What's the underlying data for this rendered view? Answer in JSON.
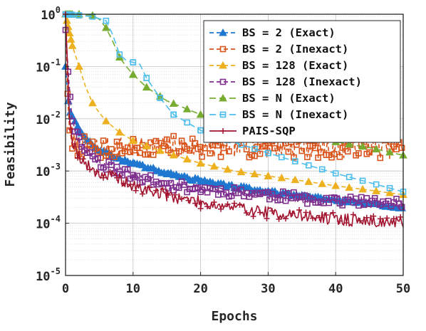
{
  "chart_data": {
    "type": "line",
    "xlabel": "Epochs",
    "ylabel": "Feasibility",
    "xlim": [
      0,
      50
    ],
    "ylim": [
      1e-05,
      1
    ],
    "yscale": "log",
    "grid": true,
    "legend_position": "top-right",
    "x_ticks": [
      "0",
      "10",
      "20",
      "30",
      "40",
      "50"
    ],
    "y_ticks": [
      {
        "base": "10",
        "exp": "0"
      },
      {
        "base": "10",
        "exp": "-1"
      },
      {
        "base": "10",
        "exp": "-2"
      },
      {
        "base": "10",
        "exp": "-3"
      },
      {
        "base": "10",
        "exp": "-4"
      },
      {
        "base": "10",
        "exp": "-5"
      }
    ],
    "series": [
      {
        "name": "BS = 2 (Exact)",
        "color": "#1f77d0",
        "marker": "triangle",
        "dash": "6,4",
        "noise": 0.03,
        "noiseSeed": 3,
        "x": [
          0,
          0.5,
          1,
          2,
          3,
          5,
          8,
          10,
          15,
          20,
          25,
          30,
          35,
          40,
          45,
          50
        ],
        "y": [
          0.1,
          0.015,
          0.011,
          0.006,
          0.004,
          0.0025,
          0.0017,
          0.0014,
          0.0009,
          0.00065,
          0.0005,
          0.0004,
          0.00033,
          0.00028,
          0.00024,
          0.0002
        ]
      },
      {
        "name": "BS = 2 (Inexact)",
        "color": "#d9541a",
        "marker": "square",
        "dash": "6,4",
        "noise": 0.22,
        "noiseSeed": 7,
        "x": [
          0,
          0.3,
          0.6,
          1,
          2,
          3,
          5,
          10,
          15,
          20,
          25,
          30,
          35,
          40,
          45,
          50
        ],
        "y": [
          1.0,
          0.03,
          0.006,
          0.0035,
          0.003,
          0.0028,
          0.0027,
          0.0028,
          0.003,
          0.0028,
          0.003,
          0.0029,
          0.003,
          0.0029,
          0.003,
          0.0028
        ]
      },
      {
        "name": "BS = 128 (Exact)",
        "color": "#edb120",
        "marker": "triangle",
        "dash": "6,4",
        "noise": 0.0,
        "noiseSeed": 1,
        "x": [
          0,
          1,
          2,
          3,
          4,
          5,
          6,
          8,
          10,
          12,
          15,
          20,
          25,
          30,
          35,
          40,
          45,
          50
        ],
        "y": [
          1.0,
          0.25,
          0.1,
          0.04,
          0.02,
          0.013,
          0.009,
          0.0055,
          0.0038,
          0.003,
          0.0022,
          0.0014,
          0.001,
          0.0008,
          0.00065,
          0.00052,
          0.00043,
          0.00035
        ]
      },
      {
        "name": "BS = 128 (Inexact)",
        "color": "#7e2f8e",
        "marker": "square",
        "dash": "6,4",
        "noise": 0.1,
        "noiseSeed": 11,
        "x": [
          0,
          0.5,
          1,
          2,
          3,
          5,
          8,
          10,
          15,
          20,
          25,
          30,
          35,
          40,
          45,
          50
        ],
        "y": [
          0.5,
          0.05,
          0.01,
          0.004,
          0.0025,
          0.0015,
          0.001,
          0.0008,
          0.00055,
          0.00045,
          0.0004,
          0.00035,
          0.0003,
          0.00028,
          0.00025,
          0.00023
        ]
      },
      {
        "name": "BS = N (Exact)",
        "color": "#77ac30",
        "marker": "triangle",
        "dash": "9,5",
        "noise": 0.0,
        "noiseSeed": 1,
        "x": [
          0,
          2,
          4,
          5,
          6,
          7,
          8,
          9,
          10,
          12,
          15,
          20,
          25,
          30,
          35,
          40,
          45,
          50
        ],
        "y": [
          1.0,
          1.0,
          0.95,
          0.8,
          0.55,
          0.3,
          0.15,
          0.1,
          0.07,
          0.04,
          0.022,
          0.012,
          0.008,
          0.006,
          0.0047,
          0.0036,
          0.0028,
          0.002
        ]
      },
      {
        "name": "BS = N (Inexact)",
        "color": "#4dbeee",
        "marker": "square",
        "dash": "9,5",
        "noise": 0.0,
        "noiseSeed": 1,
        "x": [
          0,
          2,
          4,
          6,
          7,
          8,
          9,
          10,
          11,
          12,
          14,
          16,
          20,
          25,
          30,
          35,
          40,
          45,
          50
        ],
        "y": [
          1.0,
          0.95,
          0.9,
          0.75,
          0.4,
          0.17,
          0.13,
          0.12,
          0.11,
          0.06,
          0.025,
          0.012,
          0.006,
          0.0035,
          0.0022,
          0.0014,
          0.0009,
          0.0006,
          0.0004
        ]
      },
      {
        "name": "PAIS-SQP",
        "color": "#a2142f",
        "marker": "plus",
        "dash": "",
        "noise": 0.12,
        "noiseSeed": 19,
        "x": [
          0,
          0.3,
          0.6,
          1,
          2,
          3,
          5,
          8,
          10,
          15,
          20,
          25,
          30,
          35,
          40,
          45,
          50
        ],
        "y": [
          1.0,
          0.1,
          0.01,
          0.004,
          0.002,
          0.0013,
          0.0009,
          0.0007,
          0.0005,
          0.00035,
          0.00025,
          0.0002,
          0.00016,
          0.00014,
          0.00012,
          0.00011,
          0.0001
        ]
      }
    ]
  }
}
